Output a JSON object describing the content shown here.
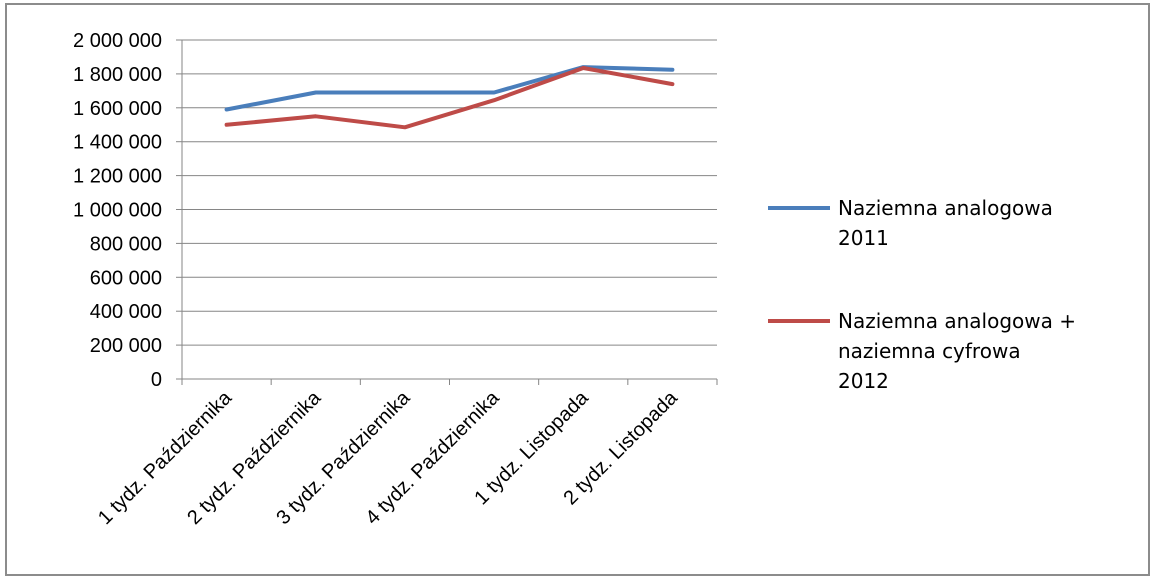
{
  "chart_data": {
    "type": "line",
    "title": "",
    "xlabel": "",
    "ylabel": "",
    "categories": [
      "1 tydz. Października",
      "2 tydz. Października",
      "3 tydz. Października",
      "4 tydz. Października",
      "1 tydz. Listopada",
      "2 tydz. Listopada"
    ],
    "ylim": [
      0,
      2000000
    ],
    "yticks": [
      0,
      200000,
      400000,
      600000,
      800000,
      1000000,
      1200000,
      1400000,
      1600000,
      1800000,
      2000000
    ],
    "ytick_labels": [
      "0",
      "200 000",
      "400 000",
      "600 000",
      "800 000",
      "1 000 000",
      "1 200 000",
      "1 400 000",
      "1 600 000",
      "1 800 000",
      "2 000 000"
    ],
    "grid": true,
    "legend_position": "right",
    "series": [
      {
        "name": "Naziemna analogowa 2011",
        "legend_lines": [
          "Naziemna analogowa",
          "2011"
        ],
        "color": "#4a7ebb",
        "values": [
          1590000,
          1690000,
          1690000,
          1690000,
          1840000,
          1825000
        ]
      },
      {
        "name": "Naziemna analogowa + naziemna cyfrowa 2012",
        "legend_lines": [
          "Naziemna analogowa +",
          "naziemna cyfrowa",
          "2012"
        ],
        "color": "#be4b48",
        "values": [
          1500000,
          1550000,
          1485000,
          1645000,
          1835000,
          1740000
        ]
      }
    ]
  }
}
